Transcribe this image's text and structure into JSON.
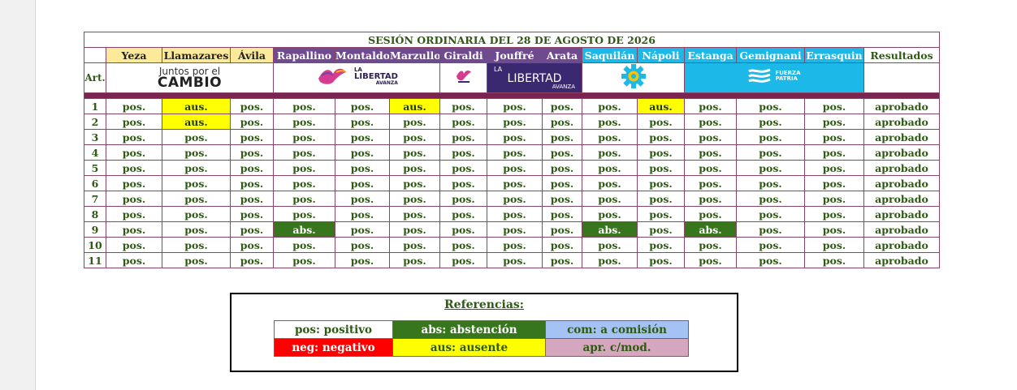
{
  "title": "SESIÓN ORDINARIA DEL 28 DE AGOSTO DE 2026",
  "art_label": "Art.",
  "columns": {
    "yeza": "Yeza",
    "llamazares": "Llamazares",
    "avila": "Ávila",
    "rapallino": "Rapallino",
    "montaldo": "Montaldo",
    "marzullo": "Marzullo",
    "giraldi": "Giraldi",
    "jouffre": "Jouffré",
    "arata": "Arata",
    "saquilan": "Saquilán",
    "napoli": "Nápoli",
    "estanga": "Estanga",
    "gemignani": "Gemignani",
    "errasquin": "Errasquin",
    "resultados": "Resultados"
  },
  "logos": {
    "jxc_top": "Juntos por el",
    "jxc_bottom": "CAMBIO",
    "lla_small_1": "LA",
    "lla_small_2": "LIBERTAD",
    "lla_small_3": "AVANZA",
    "lla_box_1": "LA",
    "lla_box_2": "LIBERTAD",
    "lla_box_3": "AVANZA",
    "fp_1": "FUERZA",
    "fp_2": "PATRIA"
  },
  "colors": {
    "positive_text": "#2f5a14",
    "ausente": "#ffff00",
    "abstencion": "#38761d",
    "separator": "#7b2450"
  },
  "rows": [
    {
      "art": "1",
      "votes": [
        "pos.",
        "aus.",
        "pos.",
        "pos.",
        "pos.",
        "aus.",
        "pos.",
        "pos.",
        "pos.",
        "pos.",
        "aus.",
        "pos.",
        "pos.",
        "pos."
      ],
      "result": "aprobado"
    },
    {
      "art": "2",
      "votes": [
        "pos.",
        "aus.",
        "pos.",
        "pos.",
        "pos.",
        "pos.",
        "pos.",
        "pos.",
        "pos.",
        "pos.",
        "pos.",
        "pos.",
        "pos.",
        "pos."
      ],
      "result": "aprobado"
    },
    {
      "art": "3",
      "votes": [
        "pos.",
        "pos.",
        "pos.",
        "pos.",
        "pos.",
        "pos.",
        "pos.",
        "pos.",
        "pos.",
        "pos.",
        "pos.",
        "pos.",
        "pos.",
        "pos."
      ],
      "result": "aprobado"
    },
    {
      "art": "4",
      "votes": [
        "pos.",
        "pos.",
        "pos.",
        "pos.",
        "pos.",
        "pos.",
        "pos.",
        "pos.",
        "pos.",
        "pos.",
        "pos.",
        "pos.",
        "pos.",
        "pos."
      ],
      "result": "aprobado"
    },
    {
      "art": "5",
      "votes": [
        "pos.",
        "pos.",
        "pos.",
        "pos.",
        "pos.",
        "pos.",
        "pos.",
        "pos.",
        "pos.",
        "pos.",
        "pos.",
        "pos.",
        "pos.",
        "pos."
      ],
      "result": "aprobado"
    },
    {
      "art": "6",
      "votes": [
        "pos.",
        "pos.",
        "pos.",
        "pos.",
        "pos.",
        "pos.",
        "pos.",
        "pos.",
        "pos.",
        "pos.",
        "pos.",
        "pos.",
        "pos.",
        "pos."
      ],
      "result": "aprobado"
    },
    {
      "art": "7",
      "votes": [
        "pos.",
        "pos.",
        "pos.",
        "pos.",
        "pos.",
        "pos.",
        "pos.",
        "pos.",
        "pos.",
        "pos.",
        "pos.",
        "pos.",
        "pos.",
        "pos."
      ],
      "result": "aprobado"
    },
    {
      "art": "8",
      "votes": [
        "pos.",
        "pos.",
        "pos.",
        "pos.",
        "pos.",
        "pos.",
        "pos.",
        "pos.",
        "pos.",
        "pos.",
        "pos.",
        "pos.",
        "pos.",
        "pos."
      ],
      "result": "aprobado"
    },
    {
      "art": "9",
      "votes": [
        "pos.",
        "pos.",
        "pos.",
        "abs.",
        "pos.",
        "pos.",
        "pos.",
        "pos.",
        "pos.",
        "abs.",
        "pos.",
        "abs.",
        "pos.",
        "pos."
      ],
      "result": "aprobado"
    },
    {
      "art": "10",
      "votes": [
        "pos.",
        "pos.",
        "pos.",
        "pos.",
        "pos.",
        "pos.",
        "pos.",
        "pos.",
        "pos.",
        "pos.",
        "pos.",
        "pos.",
        "pos.",
        "pos."
      ],
      "result": "aprobado"
    },
    {
      "art": "11",
      "votes": [
        "pos.",
        "pos.",
        "pos.",
        "pos.",
        "pos.",
        "pos.",
        "pos.",
        "pos.",
        "pos.",
        "pos.",
        "pos.",
        "pos.",
        "pos.",
        "pos."
      ],
      "result": "aprobado"
    }
  ],
  "legend": {
    "title": "Referencias:",
    "pos": "pos: positivo",
    "abs": "abs: abstención",
    "com": "com: a comisión",
    "neg": "neg: negativo",
    "aus": "aus: ausente",
    "apr": "apr. c/mod."
  }
}
